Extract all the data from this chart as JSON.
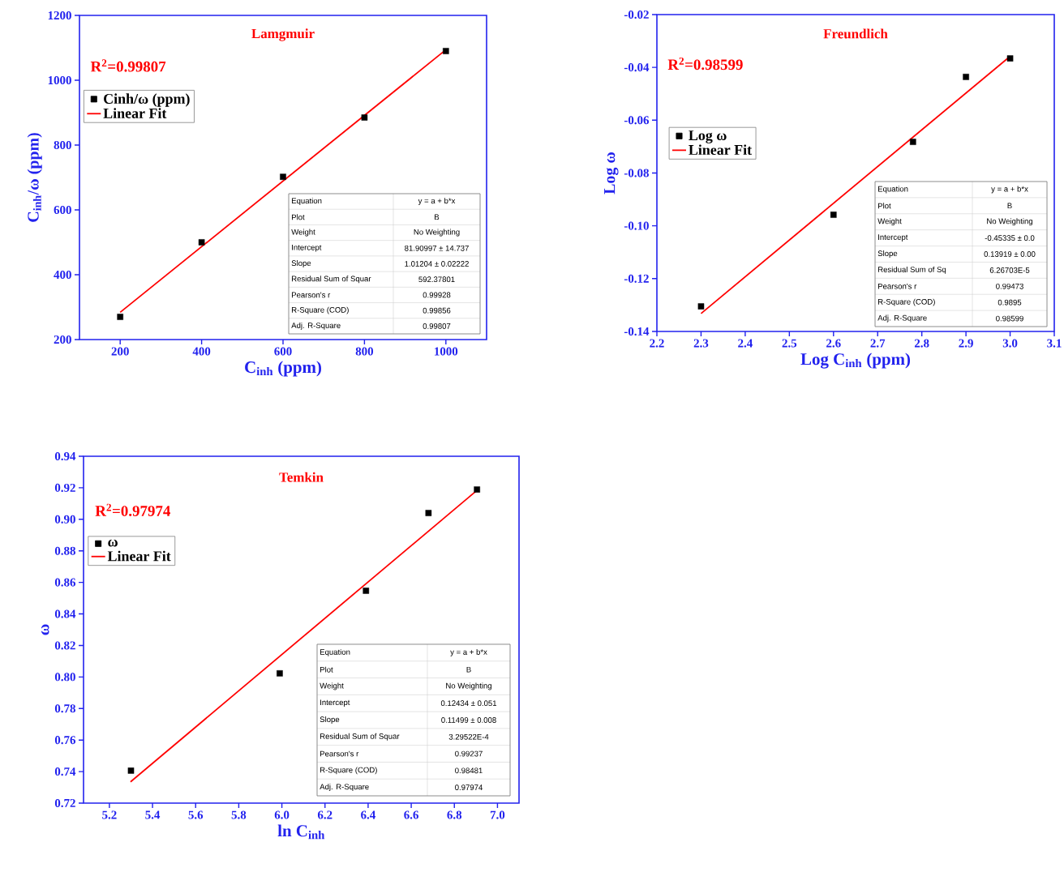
{
  "chart_data": [
    {
      "type": "scatter",
      "title": "Lamgmuir",
      "xlabel": "C$_{inh}$ (ppm)",
      "ylabel": "C$_{inh}$/ω (ppm)",
      "legend": "top left",
      "x": [
        200,
        400,
        600,
        800,
        1000
      ],
      "series": [
        {
          "name": "Cinh/ω (ppm)",
          "color": "#000000",
          "marker": "square",
          "values": [
            270,
            500,
            702,
            885,
            1090
          ]
        },
        {
          "name": "Linear Fit",
          "type": "line",
          "color": "#ff0000",
          "x": [
            200,
            1000
          ],
          "values": [
            284,
            1094
          ]
        }
      ],
      "xlim": [
        100,
        1100
      ],
      "ylim": [
        200,
        1200
      ],
      "xticks": [
        200,
        400,
        600,
        800,
        1000
      ],
      "yticks": [
        200,
        400,
        600,
        800,
        1000,
        1200
      ],
      "annotations": [
        "R$^{2}$=0.99807",
        "Equation",
        "y = a + b*x",
        "Plot",
        "B",
        "Weight",
        "No Weighting",
        "Intercept",
        "81.90997 ± 14.737",
        "Slope",
        "1.01204 ± 0.02222",
        "Residual Sum of Squar",
        "592.37801",
        "Pearson's r",
        "0.99928",
        "R-Square (COD)",
        "0.99856",
        "Adj. R-Square",
        "0.99807"
      ]
    },
    {
      "type": "scatter",
      "title": "Freundlich",
      "xlabel": "Log C$_{inh}$ (ppm)",
      "ylabel": "Log ω",
      "legend": "left",
      "x": [
        2.3,
        2.6,
        2.78,
        2.9,
        3.0
      ],
      "series": [
        {
          "name": "Log ω",
          "color": "#000000",
          "marker": "square",
          "values": [
            -0.1305,
            -0.0958,
            -0.0682,
            -0.0436,
            -0.0366
          ]
        },
        {
          "name": "Linear Fit",
          "type": "line",
          "color": "#ff0000",
          "x": [
            2.3,
            3.0
          ],
          "values": [
            -0.1332,
            -0.0358
          ]
        }
      ],
      "xlim": [
        2.2,
        3.1
      ],
      "ylim": [
        -0.14,
        -0.02
      ],
      "xticks": [
        2.2,
        2.3,
        2.4,
        2.5,
        2.6,
        2.7,
        2.8,
        2.9,
        {
          "value": 3.0,
          "label": "3.0"
        },
        3.1
      ],
      "yticks": [
        -0.14,
        -0.12,
        {
          "value": -0.1,
          "label": "-0.10"
        },
        -0.08,
        -0.06,
        -0.04,
        -0.02
      ],
      "annotations": [
        "R$^{2}$=0.98599",
        "Equation",
        "y = a + b*x",
        "Plot",
        "B",
        "Weight",
        "No Weighting",
        "Intercept",
        "-0.45335 ± 0.0",
        "Slope",
        "0.13919 ± 0.00",
        "Residual Sum of Sq",
        "6.26703E-5",
        "Pearson's r",
        "0.99473",
        "R-Square (COD)",
        "0.9895",
        "Adj. R-Square",
        "0.98599"
      ]
    },
    {
      "type": "scatter",
      "title": "Temkin",
      "xlabel": "ln C$_{inh}$",
      "ylabel": "ω",
      "legend": "top left",
      "x": [
        5.3,
        5.99,
        6.39,
        6.68,
        6.905
      ],
      "series": [
        {
          "name": "ω",
          "color": "#000000",
          "marker": "square",
          "values": [
            0.7406,
            0.8023,
            0.8547,
            0.904,
            0.9189
          ]
        },
        {
          "name": "Linear Fit",
          "type": "line",
          "color": "#ff0000",
          "x": [
            5.298,
            6.908
          ],
          "values": [
            0.7335,
            0.9187
          ]
        }
      ],
      "xlim": [
        5.08,
        7.1
      ],
      "ylim": [
        0.72,
        0.94
      ],
      "xticks": [
        5.2,
        5.4,
        5.6,
        5.8,
        {
          "value": 6.0,
          "label": "6.0"
        },
        6.2,
        6.4,
        6.6,
        6.8,
        {
          "value": 7.0,
          "label": "7.0"
        }
      ],
      "yticks": [
        0.72,
        0.74,
        0.76,
        0.78,
        {
          "value": 0.8,
          "label": "0.80"
        },
        0.82,
        0.84,
        0.86,
        0.88,
        {
          "value": 0.9,
          "label": "0.90"
        },
        0.92,
        0.94
      ],
      "annotations": [
        "R$^{2}$=0.97974",
        "Equation",
        "y = a + b*x",
        "Plot",
        "B",
        "Weight",
        "No Weighting",
        "Intercept",
        "0.12434 ± 0.051",
        "Slope",
        "0.11499 ± 0.008",
        "Residual Sum of Squar",
        "3.29522E-4",
        "Pearson's r",
        "0.99237",
        "R-Square (COD)",
        "0.98481",
        "Adj. R-Square",
        "0.97974"
      ]
    }
  ]
}
